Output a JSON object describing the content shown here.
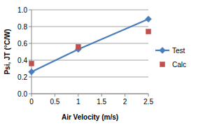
{
  "chart_data": {
    "type": "line",
    "x_label": "Air Velocity (m/s)",
    "y_label": "Psi, JT (°C/W)",
    "x": [
      0,
      1,
      2.5
    ],
    "series": [
      {
        "name": "Test",
        "type": "line",
        "marker": "diamond",
        "color": "#4a7ebb",
        "values": [
          0.26,
          0.53,
          0.89
        ]
      },
      {
        "name": "Calc",
        "type": "scatter",
        "marker": "square",
        "color": "#c0504d",
        "values": [
          0.36,
          0.56,
          0.74
        ]
      }
    ],
    "xlim": [
      0,
      2.5
    ],
    "ylim": [
      0,
      1
    ],
    "xticks": [
      0,
      0.5,
      1,
      1.5,
      2,
      2.5
    ],
    "yticks": [
      {
        "value": 0,
        "label": "0.0"
      },
      0.2,
      0.4,
      0.6,
      0.8,
      {
        "value": 1,
        "label": "1.0"
      }
    ],
    "grid": true,
    "legend": "right"
  }
}
